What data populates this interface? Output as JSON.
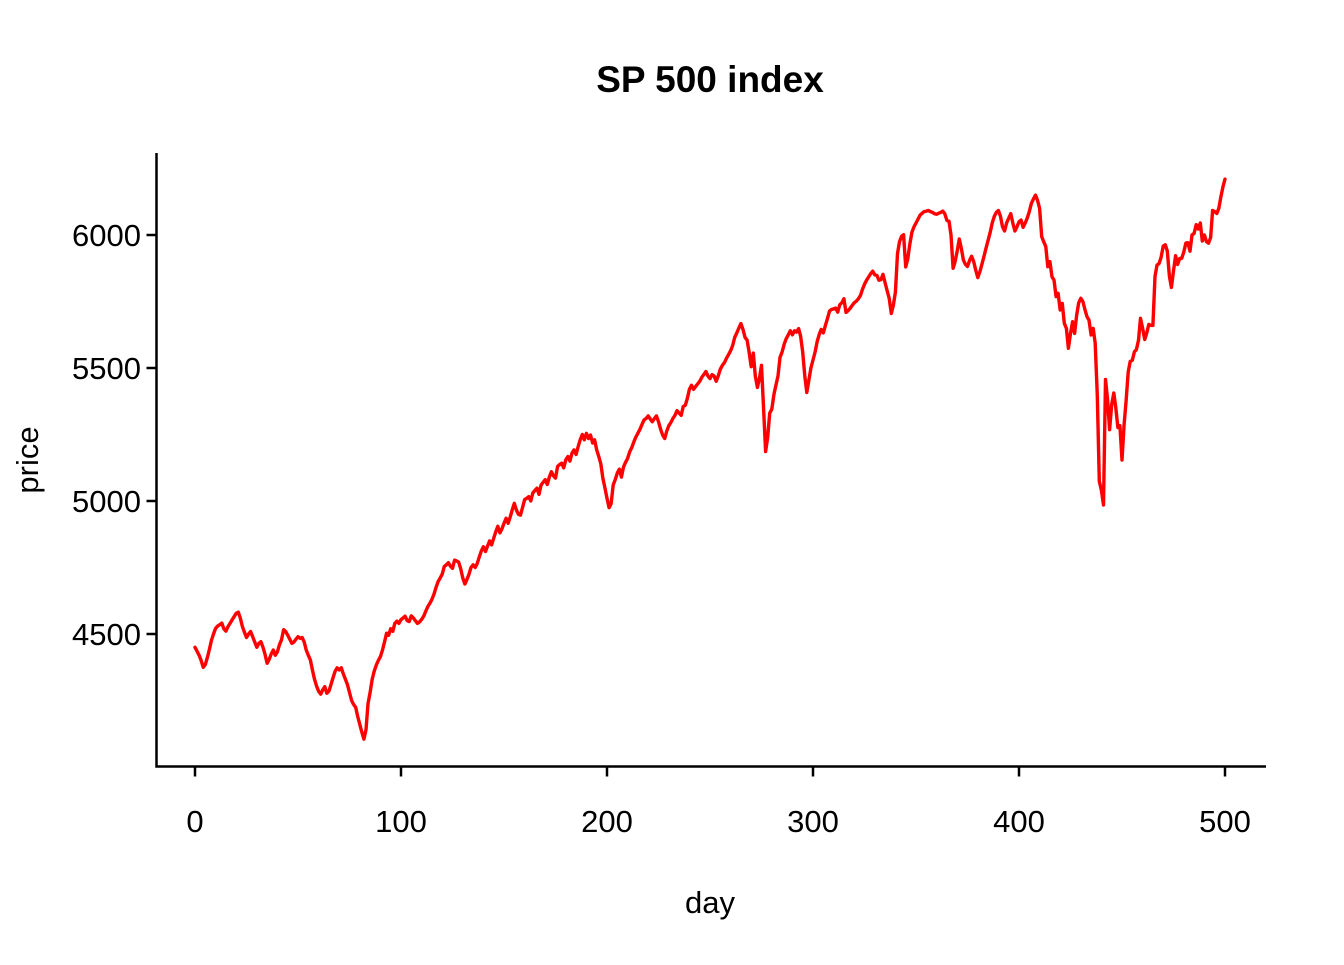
{
  "title": "SP 500 index",
  "x_axis": {
    "label": "day",
    "ticks": [
      0,
      100,
      200,
      300,
      400,
      500
    ]
  },
  "y_axis": {
    "label": "price",
    "ticks": [
      4500,
      5000,
      5500,
      6000
    ]
  },
  "colors": {
    "line": "#ff0000",
    "axis": "#000000",
    "background": "#ffffff"
  },
  "chart_data": {
    "type": "line",
    "title": "SP 500 index",
    "xlabel": "day",
    "ylabel": "price",
    "x_start": 0,
    "x_step": 1,
    "xlim": [
      -20,
      520
    ],
    "ylim": [
      4020,
      6300
    ],
    "x_ticks": [
      0,
      100,
      200,
      300,
      400,
      500
    ],
    "y_ticks": [
      4500,
      5000,
      5500,
      6000
    ],
    "grid": false,
    "legend_position": "none",
    "series": [
      {
        "name": "price",
        "color": "#ff0000",
        "values": [
          4450,
          4435,
          4420,
          4400,
          4375,
          4385,
          4412,
          4442,
          4477,
          4500,
          4521,
          4530,
          4535,
          4541,
          4520,
          4511,
          4528,
          4540,
          4553,
          4565,
          4578,
          4582,
          4560,
          4528,
          4507,
          4487,
          4500,
          4509,
          4490,
          4470,
          4450,
          4465,
          4471,
          4450,
          4424,
          4390,
          4405,
          4425,
          4440,
          4420,
          4433,
          4460,
          4478,
          4516,
          4510,
          4496,
          4480,
          4465,
          4470,
          4480,
          4490,
          4484,
          4487,
          4470,
          4440,
          4420,
          4402,
          4365,
          4330,
          4305,
          4285,
          4274,
          4290,
          4302,
          4277,
          4285,
          4310,
          4335,
          4360,
          4373,
          4365,
          4373,
          4350,
          4330,
          4310,
          4280,
          4250,
          4235,
          4224,
          4190,
          4160,
          4130,
          4105,
          4140,
          4238,
          4280,
          4330,
          4360,
          4383,
          4400,
          4415,
          4440,
          4470,
          4503,
          4495,
          4520,
          4510,
          4540,
          4548,
          4540,
          4554,
          4560,
          4567,
          4550,
          4547,
          4568,
          4560,
          4550,
          4540,
          4545,
          4555,
          4567,
          4585,
          4603,
          4615,
          4630,
          4650,
          4675,
          4697,
          4710,
          4725,
          4754,
          4760,
          4768,
          4755,
          4747,
          4778,
          4775,
          4770,
          4745,
          4710,
          4688,
          4705,
          4725,
          4750,
          4760,
          4750,
          4765,
          4790,
          4812,
          4828,
          4810,
          4830,
          4850,
          4835,
          4860,
          4885,
          4905,
          4880,
          4895,
          4916,
          4935,
          4916,
          4940,
          4966,
          4991,
          4966,
          4950,
          4947,
          4975,
          5005,
          5010,
          5016,
          5000,
          5030,
          5040,
          5048,
          5025,
          5060,
          5070,
          5080,
          5062,
          5090,
          5110,
          5095,
          5086,
          5130,
          5137,
          5142,
          5125,
          5155,
          5167,
          5150,
          5180,
          5192,
          5175,
          5205,
          5230,
          5250,
          5230,
          5254,
          5235,
          5248,
          5218,
          5230,
          5192,
          5167,
          5140,
          5085,
          5050,
          5010,
          4975,
          4990,
          5060,
          5080,
          5105,
          5120,
          5090,
          5128,
          5145,
          5160,
          5185,
          5200,
          5222,
          5240,
          5255,
          5270,
          5288,
          5305,
          5310,
          5320,
          5308,
          5298,
          5310,
          5320,
          5298,
          5270,
          5248,
          5235,
          5262,
          5283,
          5295,
          5310,
          5322,
          5340,
          5330,
          5322,
          5355,
          5360,
          5385,
          5420,
          5435,
          5420,
          5430,
          5440,
          5450,
          5465,
          5475,
          5487,
          5470,
          5460,
          5475,
          5470,
          5450,
          5470,
          5495,
          5510,
          5520,
          5537,
          5550,
          5565,
          5585,
          5615,
          5632,
          5650,
          5667,
          5645,
          5615,
          5605,
          5560,
          5505,
          5556,
          5470,
          5427,
          5460,
          5510,
          5346,
          5186,
          5240,
          5330,
          5345,
          5400,
          5435,
          5470,
          5540,
          5560,
          5590,
          5610,
          5625,
          5640,
          5625,
          5640,
          5635,
          5648,
          5620,
          5560,
          5470,
          5408,
          5455,
          5500,
          5530,
          5560,
          5598,
          5626,
          5645,
          5632,
          5660,
          5685,
          5714,
          5720,
          5722,
          5725,
          5710,
          5738,
          5745,
          5760,
          5709,
          5715,
          5724,
          5735,
          5745,
          5751,
          5760,
          5772,
          5795,
          5815,
          5830,
          5842,
          5855,
          5864,
          5850,
          5848,
          5830,
          5832,
          5852,
          5820,
          5790,
          5762,
          5705,
          5735,
          5785,
          5930,
          5975,
          5995,
          6001,
          5880,
          5910,
          5965,
          6010,
          6030,
          6045,
          6060,
          6075,
          6082,
          6088,
          6090,
          6092,
          6088,
          6085,
          6080,
          6078,
          6082,
          6085,
          6090,
          6080,
          6055,
          6052,
          6000,
          5875,
          5900,
          5940,
          5985,
          5950,
          5906,
          5890,
          5882,
          5905,
          5920,
          5900,
          5868,
          5840,
          5862,
          5890,
          5920,
          5950,
          5980,
          6010,
          6045,
          6070,
          6085,
          6092,
          6070,
          6031,
          6015,
          6045,
          6063,
          6080,
          6045,
          6015,
          6030,
          6050,
          6056,
          6029,
          6045,
          6063,
          6088,
          6119,
          6135,
          6150,
          6131,
          6100,
          5994,
          5975,
          5956,
          5881,
          5900,
          5843,
          5831,
          5768,
          5781,
          5718,
          5743,
          5668,
          5649,
          5574,
          5630,
          5674,
          5630,
          5700,
          5745,
          5762,
          5750,
          5720,
          5693,
          5680,
          5624,
          5649,
          5593,
          5396,
          5074,
          5040,
          4985,
          5457,
          5380,
          5268,
          5363,
          5406,
          5350,
          5276,
          5283,
          5154,
          5288,
          5376,
          5485,
          5525,
          5529,
          5561,
          5569,
          5604,
          5687,
          5650,
          5607,
          5631,
          5664,
          5660,
          5660,
          5844,
          5887,
          5893,
          5916,
          5958,
          5963,
          5940,
          5845,
          5803,
          5865,
          5922,
          5889,
          5912,
          5912,
          5936,
          5970,
          5971,
          5939,
          6000,
          6006,
          6039,
          6022,
          6045,
          5977,
          6000,
          5975,
          5969,
          5990,
          6092,
          6088,
          6081,
          6100,
          6144,
          6180,
          6210
        ]
      }
    ]
  }
}
